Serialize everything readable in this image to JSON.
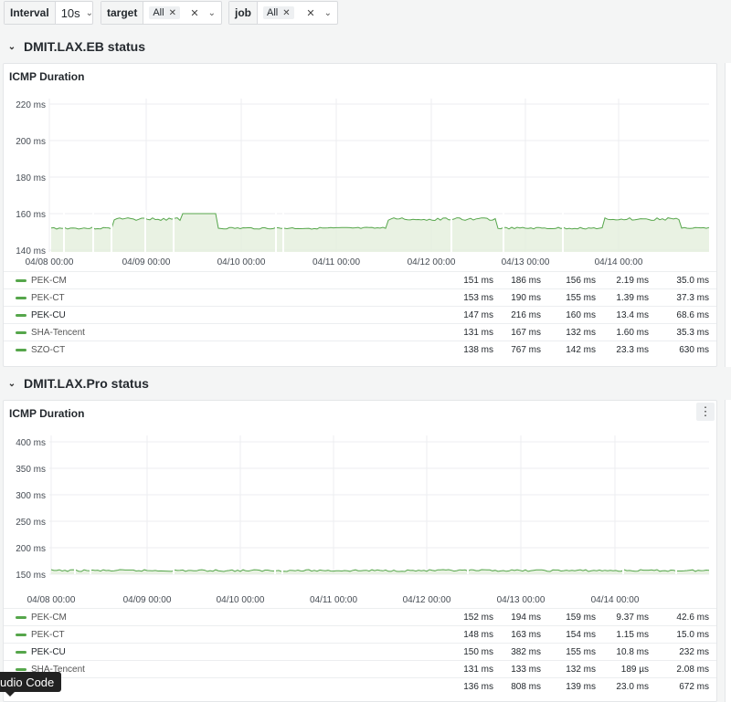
{
  "vars": {
    "interval": {
      "label": "Interval",
      "value": "10s"
    },
    "target": {
      "label": "target",
      "value": "All"
    },
    "job": {
      "label": "job",
      "value": "All"
    }
  },
  "rows": [
    {
      "title": "DMIT.LAX.EB status",
      "panel_title": "ICMP Duration",
      "y_ticks": [
        "220 ms",
        "200 ms",
        "180 ms",
        "160 ms",
        "140 ms"
      ],
      "x_ticks": [
        "04/08 00:00",
        "04/09 00:00",
        "04/10 00:00",
        "04/11 00:00",
        "04/12 00:00",
        "04/13 00:00",
        "04/14 00:00"
      ],
      "legend": [
        {
          "name": "PEK-CM",
          "v": [
            "151 ms",
            "186 ms",
            "156 ms",
            "2.19 ms",
            "35.0 ms"
          ]
        },
        {
          "name": "PEK-CT",
          "v": [
            "153 ms",
            "190 ms",
            "155 ms",
            "1.39 ms",
            "37.3 ms"
          ]
        },
        {
          "name": "PEK-CU",
          "v": [
            "147 ms",
            "216 ms",
            "160 ms",
            "13.4 ms",
            "68.6 ms"
          ],
          "dark": true
        },
        {
          "name": "SHA-Tencent",
          "v": [
            "131 ms",
            "167 ms",
            "132 ms",
            "1.60 ms",
            "35.3 ms"
          ]
        },
        {
          "name": "SZO-CT",
          "v": [
            "138 ms",
            "767 ms",
            "142 ms",
            "23.3 ms",
            "630 ms"
          ]
        }
      ]
    },
    {
      "title": "DMIT.LAX.Pro status",
      "panel_title": "ICMP Duration",
      "y_ticks": [
        "400 ms",
        "350 ms",
        "300 ms",
        "250 ms",
        "200 ms",
        "150 ms"
      ],
      "x_ticks": [
        "04/08 00:00",
        "04/09 00:00",
        "04/10 00:00",
        "04/11 00:00",
        "04/12 00:00",
        "04/13 00:00",
        "04/14 00:00"
      ],
      "legend": [
        {
          "name": "PEK-CM",
          "v": [
            "152 ms",
            "194 ms",
            "159 ms",
            "9.37 ms",
            "42.6 ms"
          ]
        },
        {
          "name": "PEK-CT",
          "v": [
            "148 ms",
            "163 ms",
            "154 ms",
            "1.15 ms",
            "15.0 ms"
          ]
        },
        {
          "name": "PEK-CU",
          "v": [
            "150 ms",
            "382 ms",
            "155 ms",
            "10.8 ms",
            "232 ms"
          ],
          "dark": true
        },
        {
          "name": "SHA-Tencent",
          "v": [
            "131 ms",
            "133 ms",
            "132 ms",
            "189 µs",
            "2.08 ms"
          ]
        },
        {
          "name": "",
          "v": [
            "136 ms",
            "808 ms",
            "139 ms",
            "23.0 ms",
            "672 ms"
          ]
        }
      ]
    }
  ],
  "tooltip": "udio Code",
  "colors": {
    "series": "#56a64b",
    "spike_mid": "#d5c32a",
    "spike_high": "#e0492d",
    "fill": "#e3efdc"
  }
}
